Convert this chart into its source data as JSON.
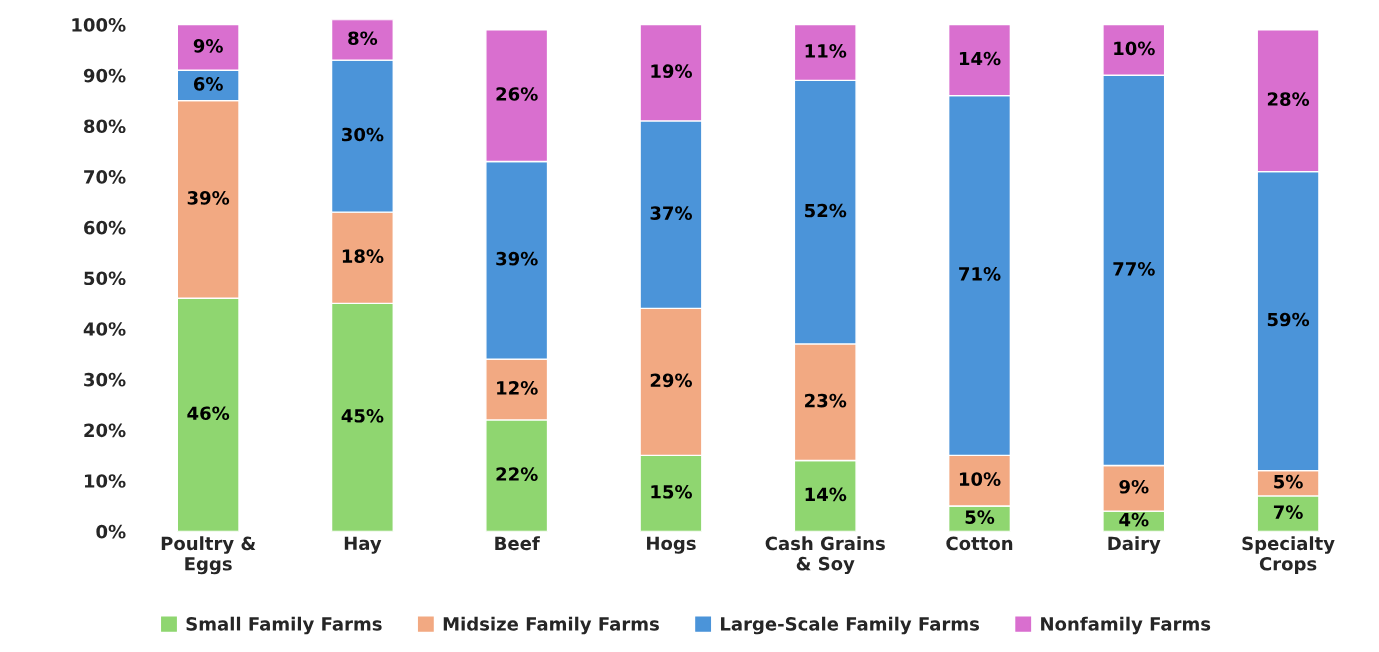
{
  "chart_data": {
    "type": "bar",
    "stacked": true,
    "categories": [
      "Poultry &\nEggs",
      "Hay",
      "Beef",
      "Hogs",
      "Cash Grains\n& Soy",
      "Cotton",
      "Dairy",
      "Specialty\nCrops"
    ],
    "series": [
      {
        "name": "Small Family Farms",
        "color": "#8fd670",
        "values": [
          46,
          45,
          22,
          15,
          14,
          5,
          4,
          7
        ],
        "value_labels": [
          "46%",
          "45%",
          "22%",
          "15%",
          "14%",
          "5%",
          "4%",
          "7%"
        ]
      },
      {
        "name": "Midsize Family Farms",
        "color": "#f2a982",
        "values": [
          39,
          18,
          12,
          29,
          23,
          10,
          9,
          5
        ],
        "value_labels": [
          "39%",
          "18%",
          "12%",
          "29%",
          "23%",
          "10%",
          "9%",
          "5%"
        ]
      },
      {
        "name": "Large-Scale Family Farms",
        "color": "#4b94d9",
        "values": [
          6,
          30,
          39,
          37,
          52,
          71,
          77,
          59
        ],
        "value_labels": [
          "6%",
          "30%",
          "39%",
          "37%",
          "52%",
          "71%",
          "77%",
          "59%"
        ]
      },
      {
        "name": "Nonfamily Farms",
        "color": "#d96fcf",
        "values": [
          9,
          8,
          26,
          19,
          11,
          14,
          10,
          28
        ],
        "value_labels": [
          "9%",
          "8%",
          "26%",
          "19%",
          "11%",
          "14%",
          "10%",
          "28%"
        ]
      }
    ],
    "ylim": [
      0,
      101
    ],
    "yticks": [
      {
        "value": 0,
        "label": "0%"
      },
      {
        "value": 10,
        "label": "10%"
      },
      {
        "value": 20,
        "label": "20%"
      },
      {
        "value": 30,
        "label": "30%"
      },
      {
        "value": 40,
        "label": "40%"
      },
      {
        "value": 50,
        "label": "50%"
      },
      {
        "value": 60,
        "label": "60%"
      },
      {
        "value": 70,
        "label": "70%"
      },
      {
        "value": 80,
        "label": "80%"
      },
      {
        "value": 90,
        "label": "90%"
      },
      {
        "value": 100,
        "label": "100%"
      }
    ],
    "grid": false,
    "legend": "bottom"
  }
}
